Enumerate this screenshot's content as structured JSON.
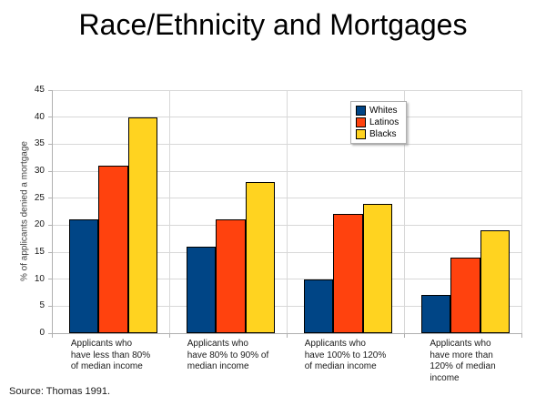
{
  "page": {
    "background": "#ffffff",
    "source_note": "Source: Thomas 1991."
  },
  "chart_data": {
    "type": "bar",
    "title": "Race/Ethnicity and Mortgages",
    "ylabel": "% of applicants denied a mortgage",
    "categories": [
      "Applicants who\nhave less than 80%\nof median income",
      "Applicants who\nhave 80% to 90% of\nmedian income",
      "Applicants who\nhave 100% to 120%\nof median income",
      "Applicants who\nhave more than\n120% of median\nincome"
    ],
    "series": [
      {
        "name": "Whites",
        "color": "#004586",
        "values": [
          21,
          16,
          10,
          7
        ]
      },
      {
        "name": "Latinos",
        "color": "#ff420e",
        "values": [
          31,
          21,
          22,
          14
        ]
      },
      {
        "name": "Blacks",
        "color": "#ffd320",
        "values": [
          40,
          28,
          24,
          19
        ]
      }
    ],
    "ylim": [
      0,
      45
    ],
    "yticks": [
      0,
      5,
      10,
      15,
      20,
      25,
      30,
      35,
      40,
      45
    ],
    "grid": true,
    "legend_position": "top-right",
    "colors": {
      "gridline": "#d8d8d8",
      "axis": "#b0b0b0",
      "bar_border": "#000000",
      "text": "#1a1a1a"
    }
  }
}
